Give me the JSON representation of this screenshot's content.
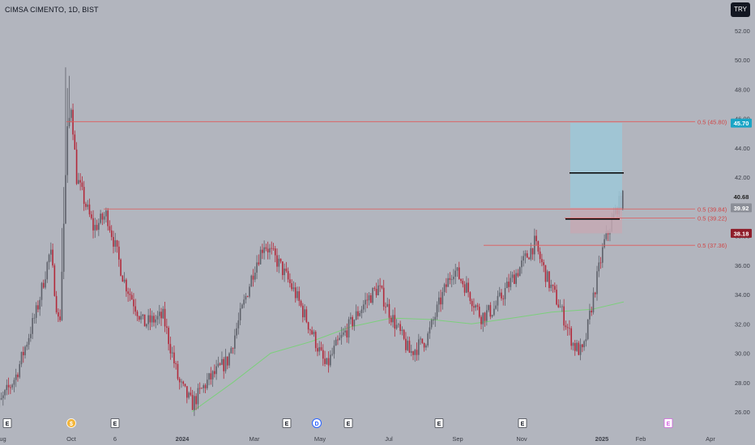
{
  "header": {
    "title": "CIMSA CIMENTO, 1D, BIST",
    "currency": "TRY"
  },
  "chart_data": {
    "type": "candlestick",
    "title": "CIMSA CIMENTO, 1D, BIST",
    "ylim": [
      25.2,
      53.6
    ],
    "y_ticks": [
      "26.00",
      "28.00",
      "30.00",
      "32.00",
      "34.00",
      "36.00",
      "38.00",
      "40.00",
      "42.00",
      "44.00",
      "46.00",
      "48.00",
      "50.00",
      "52.00"
    ],
    "x_ticks": [
      "Aug",
      "Oct",
      "6",
      "2024",
      "Mar",
      "May",
      "Jul",
      "Sep",
      "Nov",
      "2025",
      "Feb",
      "Apr"
    ],
    "price_labels": [
      {
        "text": "45.70",
        "value": 45.7,
        "kind": "cyan"
      },
      {
        "text": "40.68",
        "value": 40.68,
        "kind": "light"
      },
      {
        "text": "39.92",
        "value": 39.92,
        "kind": "gray"
      },
      {
        "text": "38.18",
        "value": 38.18,
        "kind": "red"
      }
    ],
    "levels": [
      {
        "label": "0.5 (45.80)",
        "value": 45.8
      },
      {
        "label": "0.5 (39.84)",
        "value": 39.84
      },
      {
        "label": "0.5 (39.22)",
        "value": 39.22
      },
      {
        "label": "0.5 (37.36)",
        "value": 37.36
      }
    ],
    "position": {
      "entry": 39.92,
      "target": 45.7,
      "stop": 38.18
    },
    "events": [
      "E",
      "$",
      "E",
      "E",
      "D",
      "E",
      "E",
      "E",
      "E"
    ],
    "anchors": [
      [
        "2023-08-01",
        25.5
      ],
      [
        "2023-08-20",
        28.5
      ],
      [
        "2023-09-05",
        33
      ],
      [
        "2023-09-15",
        37
      ],
      [
        "2023-09-22",
        31.5
      ],
      [
        "2023-09-28",
        45
      ],
      [
        "2023-10-01",
        47
      ],
      [
        "2023-10-05",
        42
      ],
      [
        "2023-10-18",
        38.5
      ],
      [
        "2023-10-28",
        39.5
      ],
      [
        "2023-11-10",
        35
      ],
      [
        "2023-11-25",
        32
      ],
      [
        "2023-12-10",
        32.5
      ],
      [
        "2023-12-22",
        28
      ],
      [
        "2024-01-01",
        26.5
      ],
      [
        "2024-01-12",
        28
      ],
      [
        "2024-01-28",
        29.5
      ],
      [
        "2024-02-05",
        32
      ],
      [
        "2024-02-18",
        36
      ],
      [
        "2024-02-25",
        37.5
      ],
      [
        "2024-03-08",
        36
      ],
      [
        "2024-03-20",
        34
      ],
      [
        "2024-04-01",
        31.5
      ],
      [
        "2024-04-12",
        29
      ],
      [
        "2024-04-20",
        30.5
      ],
      [
        "2024-05-01",
        32
      ],
      [
        "2024-05-12",
        33.5
      ],
      [
        "2024-05-22",
        34.5
      ],
      [
        "2024-06-01",
        32.5
      ],
      [
        "2024-06-15",
        30
      ],
      [
        "2024-06-28",
        31
      ],
      [
        "2024-07-08",
        33.5
      ],
      [
        "2024-07-18",
        35.8
      ],
      [
        "2024-07-28",
        34.5
      ],
      [
        "2024-08-08",
        32.5
      ],
      [
        "2024-08-18",
        33
      ],
      [
        "2024-08-28",
        34.5
      ],
      [
        "2024-09-08",
        36
      ],
      [
        "2024-09-18",
        37.5
      ],
      [
        "2024-09-28",
        35
      ],
      [
        "2024-10-08",
        33
      ],
      [
        "2024-10-18",
        30.5
      ],
      [
        "2024-10-25",
        30
      ],
      [
        "2024-11-01",
        33.5
      ],
      [
        "2024-11-10",
        37.5
      ],
      [
        "2024-11-20",
        40
      ],
      [
        "2024-11-25",
        40.68
      ]
    ],
    "ma": [
      [
        "2024-01-01",
        26
      ],
      [
        "2024-02-01",
        28
      ],
      [
        "2024-03-01",
        30
      ],
      [
        "2024-04-01",
        30.8
      ],
      [
        "2024-05-01",
        31.8
      ],
      [
        "2024-06-01",
        32.4
      ],
      [
        "2024-07-01",
        32.3
      ],
      [
        "2024-08-01",
        32
      ],
      [
        "2024-09-01",
        32.4
      ],
      [
        "2024-10-01",
        32.8
      ],
      [
        "2024-11-01",
        33
      ],
      [
        "2024-11-25",
        33.5
      ]
    ]
  }
}
